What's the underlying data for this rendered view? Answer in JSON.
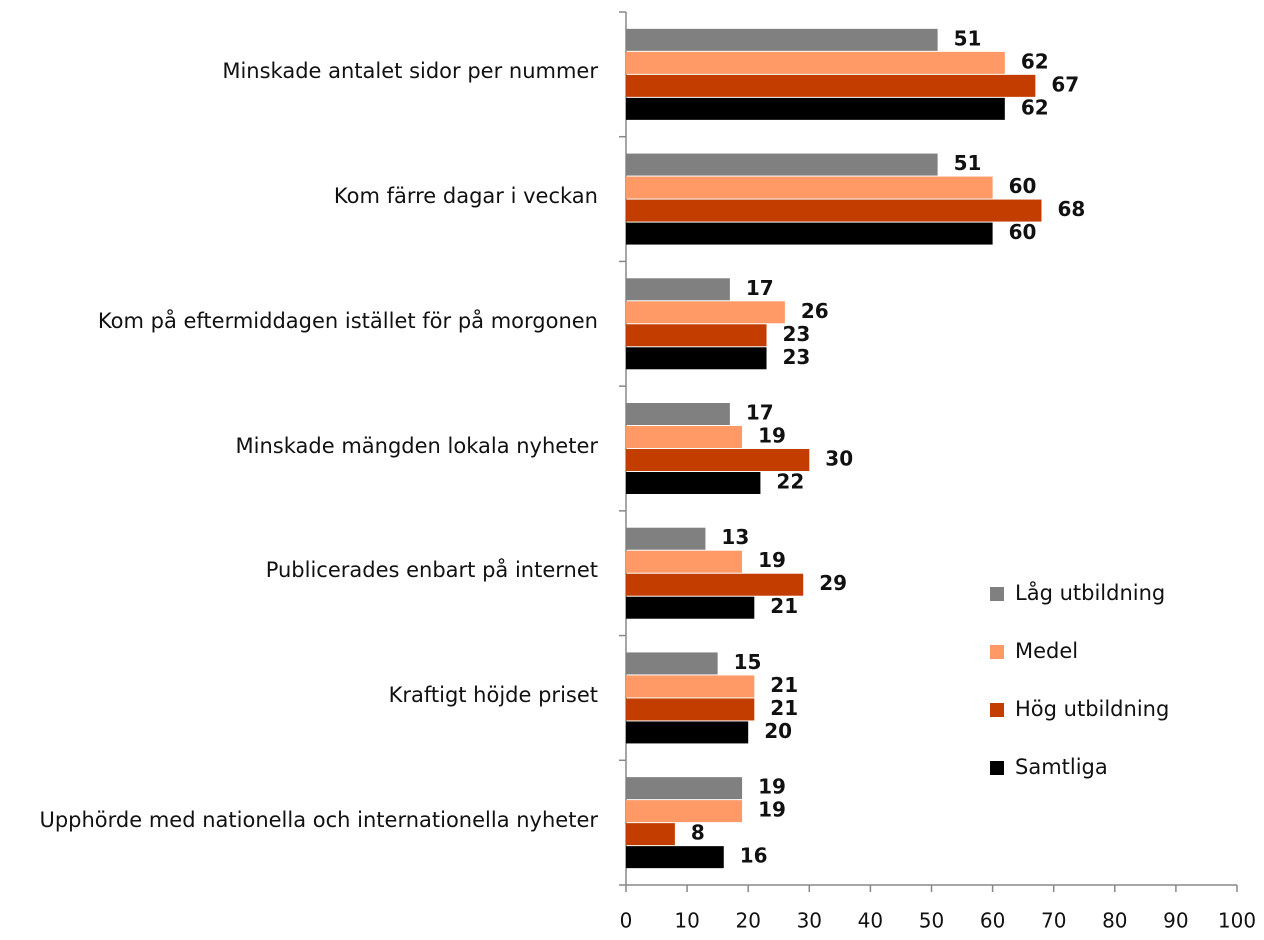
{
  "chart_data": {
    "type": "barh",
    "categories": [
      "Minskade antalet sidor per nummer",
      "Kom färre dagar i veckan",
      "Kom på eftermiddagen istället för på morgonen",
      "Minskade mängden lokala nyheter",
      "Publicerades enbart på internet",
      "Kraftigt höjde priset",
      "Upphörde med nationella och internationella nyheter"
    ],
    "series": [
      {
        "name": "Låg utbildning",
        "color": "#808080",
        "values": [
          51,
          51,
          17,
          17,
          13,
          15,
          19
        ]
      },
      {
        "name": "Medel",
        "color": "#ff9966",
        "values": [
          62,
          60,
          26,
          19,
          19,
          21,
          19
        ]
      },
      {
        "name": "Hög utbildning",
        "color": "#c33d00",
        "values": [
          67,
          68,
          23,
          30,
          29,
          21,
          8
        ]
      },
      {
        "name": "Samtliga",
        "color": "#000000",
        "values": [
          62,
          60,
          23,
          22,
          21,
          20,
          16
        ]
      }
    ],
    "xlim": [
      0,
      100
    ],
    "xticks": [
      0,
      10,
      20,
      30,
      40,
      50,
      60,
      70,
      80,
      90,
      100
    ],
    "legend": "right"
  }
}
